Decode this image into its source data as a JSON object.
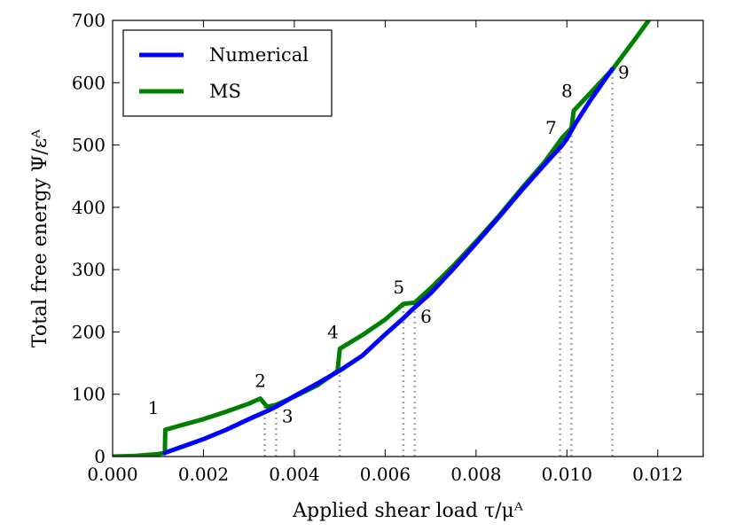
{
  "chart_data": {
    "type": "line",
    "xlabel": "Applied shear load τ/μᴬ",
    "ylabel": "Total free energy Ψ/εᴬ",
    "xlim": [
      0,
      0.013
    ],
    "ylim": [
      0,
      700
    ],
    "x_ticks": [
      "0.000",
      "0.002",
      "0.004",
      "0.006",
      "0.008",
      "0.010",
      "0.012"
    ],
    "y_ticks": [
      "0",
      "100",
      "200",
      "300",
      "400",
      "500",
      "600",
      "700"
    ],
    "legend": {
      "placement": "top-left",
      "entries": [
        "Numerical",
        "MS"
      ]
    },
    "grid": false,
    "series": [
      {
        "name": "Numerical",
        "color": "#0000ff",
        "x": [
          0.00115,
          0.0015,
          0.002,
          0.0025,
          0.003,
          0.0034,
          0.0036,
          0.004,
          0.0045,
          0.005,
          0.0055,
          0.006,
          0.0064,
          0.0066,
          0.007,
          0.0075,
          0.008,
          0.0085,
          0.009,
          0.0095,
          0.0099,
          0.01,
          0.0102,
          0.0105,
          0.011
        ],
        "y": [
          6,
          15,
          28,
          43,
          60,
          73,
          80,
          97,
          117,
          138,
          162,
          196,
          222,
          236,
          262,
          301,
          342,
          384,
          427,
          468,
          500,
          510,
          536,
          570,
          622
        ]
      },
      {
        "name": "MS",
        "color": "#008000",
        "x": [
          0,
          0.0005,
          0.001,
          0.00115,
          0.00116,
          0.0015,
          0.002,
          0.0025,
          0.003,
          0.00325,
          0.0034,
          0.0036,
          0.004,
          0.0045,
          0.00495,
          0.005,
          0.0055,
          0.006,
          0.0064,
          0.00665,
          0.007,
          0.0075,
          0.008,
          0.0085,
          0.009,
          0.0095,
          0.0099,
          0.0101,
          0.01015,
          0.0105,
          0.011,
          0.0115,
          0.0118
        ],
        "y": [
          0,
          1,
          4,
          6,
          43,
          50,
          60,
          72,
          85,
          93,
          80,
          83,
          96,
          114,
          137,
          173,
          195,
          220,
          245,
          247,
          270,
          306,
          345,
          386,
          430,
          472,
          512,
          527,
          555,
          582,
          621,
          670,
          700
        ]
      }
    ],
    "jump_markers": [
      {
        "label": "1",
        "x": 0.00115
      },
      {
        "label": "2",
        "x": 0.00335
      },
      {
        "label": "3",
        "x": 0.0036
      },
      {
        "label": "4",
        "x": 0.005
      },
      {
        "label": "5",
        "x": 0.0064
      },
      {
        "label": "6",
        "x": 0.00665
      },
      {
        "label": "7",
        "x": 0.00985
      },
      {
        "label": "8",
        "x": 0.0101
      },
      {
        "label": "9",
        "x": 0.011
      }
    ],
    "annotations": [
      {
        "text": "1",
        "x": 0.0009,
        "y": 68
      },
      {
        "text": "2",
        "x": 0.00325,
        "y": 112
      },
      {
        "text": "3",
        "x": 0.00385,
        "y": 55
      },
      {
        "text": "4",
        "x": 0.00485,
        "y": 190
      },
      {
        "text": "5",
        "x": 0.0063,
        "y": 262
      },
      {
        "text": "6",
        "x": 0.0069,
        "y": 215
      },
      {
        "text": "7",
        "x": 0.00965,
        "y": 518
      },
      {
        "text": "8",
        "x": 0.01,
        "y": 577
      },
      {
        "text": "9",
        "x": 0.01125,
        "y": 607
      }
    ]
  }
}
